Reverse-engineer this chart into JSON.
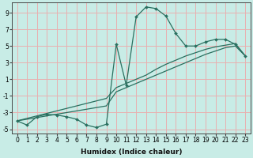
{
  "xlabel": "Humidex (Indice chaleur)",
  "bg_color": "#c8ece6",
  "grid_color": "#e8b0b0",
  "line_color": "#2a7060",
  "xlim": [
    -0.5,
    23.5
  ],
  "ylim": [
    -5.5,
    10.2
  ],
  "xticks": [
    0,
    1,
    2,
    3,
    4,
    5,
    6,
    7,
    8,
    9,
    10,
    11,
    12,
    13,
    14,
    15,
    16,
    17,
    18,
    19,
    20,
    21,
    22,
    23
  ],
  "yticks": [
    -5,
    -3,
    -1,
    1,
    3,
    5,
    7,
    9
  ],
  "series1_x": [
    0,
    1,
    2,
    3,
    4,
    5,
    6,
    7,
    8,
    9,
    10,
    11,
    12,
    13,
    14,
    15,
    16,
    17,
    18,
    19,
    20,
    21,
    22,
    23
  ],
  "series1_y": [
    -4.0,
    -4.5,
    -3.5,
    -3.2,
    -3.3,
    -3.5,
    -3.8,
    -4.5,
    -4.8,
    -4.4,
    5.2,
    0.3,
    8.5,
    9.7,
    9.5,
    8.6,
    6.5,
    5.0,
    5.0,
    5.5,
    5.8,
    5.8,
    5.2,
    3.8
  ],
  "series2_x": [
    0,
    1,
    2,
    3,
    4,
    5,
    6,
    7,
    8,
    9,
    10,
    11,
    12,
    13,
    14,
    15,
    16,
    17,
    18,
    19,
    20,
    21,
    22,
    23
  ],
  "series2_y": [
    -4.0,
    -3.8,
    -3.6,
    -3.4,
    -3.2,
    -3.0,
    -2.8,
    -2.6,
    -2.4,
    -2.2,
    -0.5,
    0.0,
    0.5,
    1.0,
    1.5,
    2.0,
    2.5,
    3.0,
    3.5,
    4.0,
    4.4,
    4.8,
    5.0,
    3.8
  ],
  "series3_x": [
    0,
    1,
    2,
    3,
    4,
    5,
    6,
    7,
    8,
    9,
    10,
    11,
    12,
    13,
    14,
    15,
    16,
    17,
    18,
    19,
    20,
    21,
    22,
    23
  ],
  "series3_y": [
    -4.0,
    -3.7,
    -3.4,
    -3.1,
    -2.8,
    -2.5,
    -2.2,
    -1.9,
    -1.6,
    -1.3,
    0.0,
    0.5,
    1.0,
    1.5,
    2.2,
    2.8,
    3.3,
    3.8,
    4.2,
    4.6,
    4.9,
    5.1,
    5.3,
    3.8
  ]
}
